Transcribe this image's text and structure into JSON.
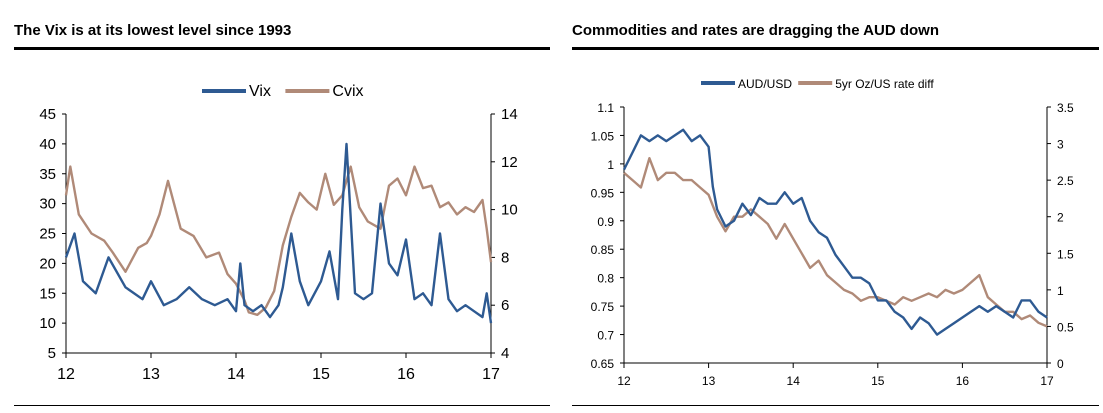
{
  "chart_data": [
    {
      "type": "line",
      "title": "The Vix is at its lowest level since 1993",
      "x_tick_labels": [
        "12",
        "13",
        "14",
        "15",
        "16",
        "17"
      ],
      "xlim": [
        12,
        17
      ],
      "y_left_ticks": [
        "45",
        "40",
        "35",
        "30",
        "25",
        "20",
        "15",
        "10",
        "5"
      ],
      "y_left_lim": [
        5,
        45
      ],
      "y_right_ticks": [
        "14",
        "12",
        "10",
        "8",
        "6",
        "4"
      ],
      "y_right_lim": [
        4,
        14
      ],
      "legend": "top-center",
      "series": [
        {
          "name": "Vix",
          "axis": "left",
          "color": "#2e5a92",
          "x": [
            12.0,
            12.1,
            12.2,
            12.35,
            12.5,
            12.7,
            12.9,
            13.0,
            13.15,
            13.3,
            13.45,
            13.6,
            13.75,
            13.9,
            14.0,
            14.05,
            14.1,
            14.2,
            14.3,
            14.4,
            14.5,
            14.55,
            14.65,
            14.75,
            14.85,
            15.0,
            15.1,
            15.2,
            15.25,
            15.3,
            15.4,
            15.5,
            15.6,
            15.7,
            15.8,
            15.9,
            16.0,
            16.1,
            16.2,
            16.3,
            16.4,
            16.5,
            16.6,
            16.7,
            16.8,
            16.9,
            16.95,
            17.0
          ],
          "values": [
            21,
            25,
            17,
            15,
            21,
            16,
            14,
            17,
            13,
            14,
            16,
            14,
            13,
            14,
            12,
            20,
            13,
            12,
            13,
            11,
            13,
            16,
            25,
            17,
            13,
            17,
            22,
            14,
            29,
            40,
            15,
            14,
            15,
            30,
            20,
            18,
            24,
            14,
            15,
            13,
            25,
            14,
            12,
            13,
            12,
            11,
            15,
            10
          ]
        },
        {
          "name": "Cvix",
          "axis": "right",
          "color": "#b08a78",
          "x": [
            12.0,
            12.05,
            12.15,
            12.3,
            12.45,
            12.55,
            12.7,
            12.85,
            12.95,
            13.0,
            13.1,
            13.2,
            13.35,
            13.5,
            13.65,
            13.8,
            13.9,
            14.0,
            14.1,
            14.15,
            14.25,
            14.35,
            14.45,
            14.55,
            14.65,
            14.75,
            14.85,
            14.95,
            15.05,
            15.15,
            15.25,
            15.35,
            15.45,
            15.55,
            15.7,
            15.8,
            15.9,
            16.0,
            16.1,
            16.2,
            16.3,
            16.4,
            16.5,
            16.6,
            16.7,
            16.8,
            16.9,
            16.95,
            17.0
          ],
          "values": [
            10.6,
            11.8,
            9.8,
            9.0,
            8.7,
            8.2,
            7.4,
            8.4,
            8.6,
            8.9,
            9.8,
            11.2,
            9.2,
            8.9,
            8.0,
            8.2,
            7.3,
            6.9,
            6.2,
            5.7,
            5.6,
            5.9,
            6.6,
            8.5,
            9.7,
            10.7,
            10.3,
            10.0,
            11.5,
            10.2,
            10.6,
            11.8,
            10.1,
            9.5,
            9.2,
            11.0,
            11.3,
            10.6,
            11.8,
            10.9,
            11.0,
            10.1,
            10.3,
            9.8,
            10.1,
            9.9,
            10.4,
            9.2,
            7.8
          ]
        }
      ]
    },
    {
      "type": "line",
      "title": "Commodities and rates are dragging the AUD down",
      "x_tick_labels": [
        "12",
        "13",
        "14",
        "15",
        "16",
        "17"
      ],
      "xlim": [
        12,
        17
      ],
      "y_left_ticks": [
        "1.1",
        "1.05",
        "1",
        "0.95",
        "0.9",
        "0.85",
        "0.8",
        "0.75",
        "0.7",
        "0.65"
      ],
      "y_left_lim": [
        0.65,
        1.1
      ],
      "y_right_ticks": [
        "3.5",
        "3",
        "2.5",
        "2",
        "1.5",
        "1",
        "0.5",
        "0"
      ],
      "y_right_lim": [
        0,
        3.5
      ],
      "legend": "top-center",
      "series": [
        {
          "name": "AUD/USD",
          "axis": "left",
          "color": "#2e5a92",
          "x": [
            12.0,
            12.1,
            12.2,
            12.3,
            12.4,
            12.5,
            12.6,
            12.7,
            12.8,
            12.9,
            13.0,
            13.05,
            13.1,
            13.2,
            13.3,
            13.4,
            13.5,
            13.6,
            13.7,
            13.8,
            13.9,
            14.0,
            14.1,
            14.2,
            14.3,
            14.4,
            14.5,
            14.6,
            14.7,
            14.8,
            14.9,
            15.0,
            15.1,
            15.2,
            15.3,
            15.4,
            15.5,
            15.6,
            15.7,
            15.8,
            15.9,
            16.0,
            16.1,
            16.2,
            16.3,
            16.4,
            16.5,
            16.6,
            16.7,
            16.8,
            16.9,
            17.0
          ],
          "values": [
            0.99,
            1.02,
            1.05,
            1.04,
            1.05,
            1.04,
            1.05,
            1.06,
            1.04,
            1.05,
            1.03,
            0.96,
            0.92,
            0.89,
            0.9,
            0.93,
            0.91,
            0.94,
            0.93,
            0.93,
            0.95,
            0.93,
            0.94,
            0.9,
            0.88,
            0.87,
            0.84,
            0.82,
            0.8,
            0.8,
            0.79,
            0.76,
            0.76,
            0.74,
            0.73,
            0.71,
            0.73,
            0.72,
            0.7,
            0.71,
            0.72,
            0.73,
            0.74,
            0.75,
            0.74,
            0.75,
            0.74,
            0.73,
            0.76,
            0.76,
            0.74,
            0.73
          ]
        },
        {
          "name": "5yr Oz/US rate diff",
          "axis": "right",
          "color": "#b08a78",
          "x": [
            12.0,
            12.1,
            12.2,
            12.3,
            12.4,
            12.5,
            12.6,
            12.7,
            12.8,
            12.9,
            13.0,
            13.1,
            13.2,
            13.3,
            13.4,
            13.5,
            13.6,
            13.7,
            13.8,
            13.9,
            14.0,
            14.1,
            14.2,
            14.3,
            14.4,
            14.5,
            14.6,
            14.7,
            14.8,
            14.9,
            15.0,
            15.1,
            15.2,
            15.3,
            15.4,
            15.5,
            15.6,
            15.7,
            15.8,
            15.9,
            16.0,
            16.1,
            16.2,
            16.3,
            16.4,
            16.5,
            16.6,
            16.7,
            16.8,
            16.9,
            17.0
          ],
          "values": [
            2.6,
            2.5,
            2.4,
            2.8,
            2.5,
            2.6,
            2.6,
            2.5,
            2.5,
            2.4,
            2.3,
            2.0,
            1.8,
            2.0,
            2.0,
            2.1,
            2.0,
            1.9,
            1.7,
            1.9,
            1.7,
            1.5,
            1.3,
            1.4,
            1.2,
            1.1,
            1.0,
            0.95,
            0.85,
            0.9,
            0.9,
            0.85,
            0.8,
            0.9,
            0.85,
            0.9,
            0.95,
            0.9,
            1.0,
            0.95,
            1.0,
            1.1,
            1.2,
            0.9,
            0.8,
            0.7,
            0.7,
            0.6,
            0.65,
            0.55,
            0.5
          ]
        }
      ]
    }
  ]
}
